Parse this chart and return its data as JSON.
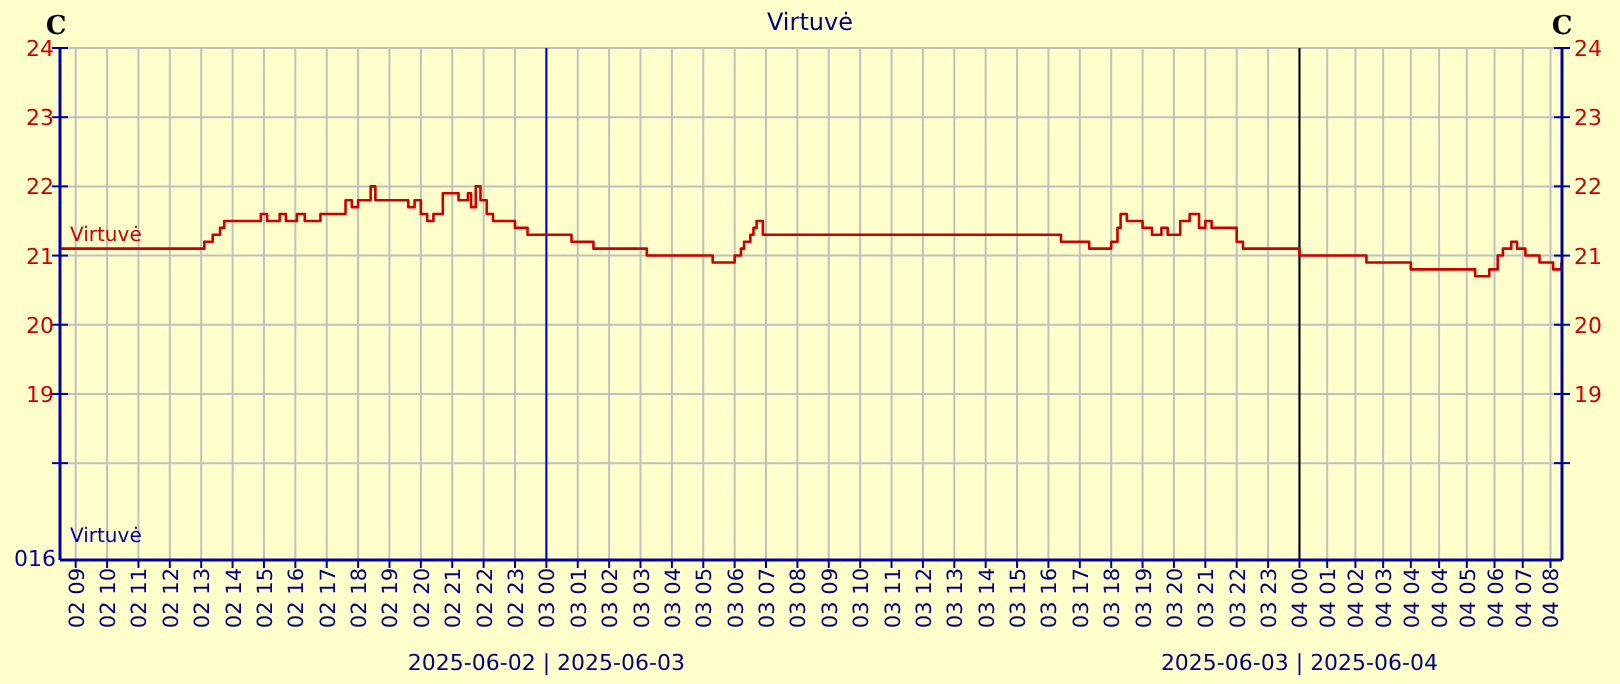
{
  "chart_data": {
    "type": "step",
    "title": "Virtuvė",
    "ylabel": "C",
    "y2label": "C",
    "x": [
      "2025-06-02T08:30",
      "2025-06-02T13:06",
      "2025-06-02T13:22",
      "2025-06-02T13:36",
      "2025-06-02T13:44",
      "2025-06-02T14:54",
      "2025-06-02T15:06",
      "2025-06-02T15:30",
      "2025-06-02T15:42",
      "2025-06-02T16:03",
      "2025-06-02T16:18",
      "2025-06-02T16:48",
      "2025-06-02T17:36",
      "2025-06-02T17:48",
      "2025-06-02T18:00",
      "2025-06-02T18:24",
      "2025-06-02T18:33",
      "2025-06-02T19:36",
      "2025-06-02T19:48",
      "2025-06-02T20:00",
      "2025-06-02T20:12",
      "2025-06-02T20:24",
      "2025-06-02T20:42",
      "2025-06-02T21:12",
      "2025-06-02T21:30",
      "2025-06-02T21:36",
      "2025-06-02T21:45",
      "2025-06-02T21:54",
      "2025-06-02T22:06",
      "2025-06-02T22:18",
      "2025-06-02T23:00",
      "2025-06-02T23:24",
      "2025-06-03T00:48",
      "2025-06-03T01:30",
      "2025-06-03T03:12",
      "2025-06-03T05:18",
      "2025-06-03T06:00",
      "2025-06-03T06:12",
      "2025-06-03T06:18",
      "2025-06-03T06:30",
      "2025-06-03T06:36",
      "2025-06-03T06:42",
      "2025-06-03T06:54",
      "2025-06-03T16:24",
      "2025-06-03T17:18",
      "2025-06-03T18:00",
      "2025-06-03T18:12",
      "2025-06-03T18:18",
      "2025-06-03T18:30",
      "2025-06-03T19:00",
      "2025-06-03T19:18",
      "2025-06-03T19:36",
      "2025-06-03T19:48",
      "2025-06-03T20:12",
      "2025-06-03T20:30",
      "2025-06-03T20:48",
      "2025-06-03T21:00",
      "2025-06-03T21:12",
      "2025-06-03T22:00",
      "2025-06-03T22:12",
      "2025-06-04T00:00",
      "2025-06-04T02:08",
      "2025-06-04T03:33",
      "2025-06-04T05:36",
      "2025-06-04T06:03",
      "2025-06-04T06:19",
      "2025-06-04T06:29",
      "2025-06-04T06:45",
      "2025-06-04T06:56",
      "2025-06-04T07:12",
      "2025-06-04T07:39",
      "2025-06-04T08:05",
      "2025-06-04T08:21"
    ],
    "series": [
      {
        "name": "Virtuvė",
        "color": "#cc0000",
        "values": [
          21.1,
          21.2,
          21.3,
          21.4,
          21.5,
          21.6,
          21.5,
          21.6,
          21.5,
          21.6,
          21.5,
          21.6,
          21.8,
          21.7,
          21.8,
          22.0,
          21.8,
          21.7,
          21.8,
          21.6,
          21.5,
          21.6,
          21.9,
          21.8,
          21.9,
          21.7,
          22.0,
          21.8,
          21.6,
          21.5,
          21.4,
          21.3,
          21.2,
          21.1,
          21.0,
          20.9,
          21.0,
          21.1,
          21.2,
          21.3,
          21.4,
          21.5,
          21.3,
          21.2,
          21.1,
          21.2,
          21.4,
          21.6,
          21.5,
          21.4,
          21.3,
          21.4,
          21.3,
          21.5,
          21.6,
          21.4,
          21.5,
          21.4,
          21.2,
          21.1,
          21.0,
          20.9,
          20.8,
          20.7,
          20.8,
          21.0,
          21.1,
          21.2,
          21.1,
          21.0,
          20.9,
          20.8,
          20.9
        ]
      }
    ],
    "xlim": [
      "2025-06-02T08:30",
      "2025-06-04T08:22"
    ],
    "xticks": [
      {
        "value": "2025-06-02T09:00",
        "label": "02 09"
      },
      {
        "value": "2025-06-02T10:00",
        "label": "02 10"
      },
      {
        "value": "2025-06-02T11:00",
        "label": "02 11"
      },
      {
        "value": "2025-06-02T12:00",
        "label": "02 12"
      },
      {
        "value": "2025-06-02T13:00",
        "label": "02 13"
      },
      {
        "value": "2025-06-02T14:00",
        "label": "02 14"
      },
      {
        "value": "2025-06-02T15:00",
        "label": "02 15"
      },
      {
        "value": "2025-06-02T16:00",
        "label": "02 16"
      },
      {
        "value": "2025-06-02T17:00",
        "label": "02 17"
      },
      {
        "value": "2025-06-02T18:00",
        "label": "02 18"
      },
      {
        "value": "2025-06-02T19:00",
        "label": "02 19"
      },
      {
        "value": "2025-06-02T20:00",
        "label": "02 20"
      },
      {
        "value": "2025-06-02T21:00",
        "label": "02 21"
      },
      {
        "value": "2025-06-02T22:00",
        "label": "02 22"
      },
      {
        "value": "2025-06-02T23:00",
        "label": "02 23"
      },
      {
        "value": "2025-06-03T00:00",
        "label": "03 00"
      },
      {
        "value": "2025-06-03T01:00",
        "label": "03 01"
      },
      {
        "value": "2025-06-03T02:00",
        "label": "03 02"
      },
      {
        "value": "2025-06-03T03:00",
        "label": "03 03"
      },
      {
        "value": "2025-06-03T04:00",
        "label": "03 04"
      },
      {
        "value": "2025-06-03T05:00",
        "label": "03 05"
      },
      {
        "value": "2025-06-03T06:00",
        "label": "03 06"
      },
      {
        "value": "2025-06-03T07:00",
        "label": "03 07"
      },
      {
        "value": "2025-06-03T08:00",
        "label": "03 08"
      },
      {
        "value": "2025-06-03T09:00",
        "label": "03 09"
      },
      {
        "value": "2025-06-03T10:00",
        "label": "03 10"
      },
      {
        "value": "2025-06-03T11:00",
        "label": "03 11"
      },
      {
        "value": "2025-06-03T12:00",
        "label": "03 12"
      },
      {
        "value": "2025-06-03T13:00",
        "label": "03 13"
      },
      {
        "value": "2025-06-03T14:00",
        "label": "03 14"
      },
      {
        "value": "2025-06-03T15:00",
        "label": "03 15"
      },
      {
        "value": "2025-06-03T16:00",
        "label": "03 16"
      },
      {
        "value": "2025-06-03T17:00",
        "label": "03 17"
      },
      {
        "value": "2025-06-03T18:00",
        "label": "03 18"
      },
      {
        "value": "2025-06-03T19:00",
        "label": "03 19"
      },
      {
        "value": "2025-06-03T20:00",
        "label": "03 20"
      },
      {
        "value": "2025-06-03T21:00",
        "label": "03 21"
      },
      {
        "value": "2025-06-03T22:00",
        "label": "03 22"
      },
      {
        "value": "2025-06-03T23:00",
        "label": "03 23"
      },
      {
        "value": "2025-06-04T00:00",
        "label": "04 00"
      },
      {
        "value": "2025-06-04T00:53",
        "label": "04 01"
      },
      {
        "value": "2025-06-04T01:47",
        "label": "04 02"
      },
      {
        "value": "2025-06-04T02:40",
        "label": "04 03"
      },
      {
        "value": "2025-06-04T03:33",
        "label": "04 04"
      },
      {
        "value": "2025-06-04T04:27",
        "label": "04 04"
      },
      {
        "value": "2025-06-04T05:20",
        "label": "04 05"
      },
      {
        "value": "2025-06-04T06:13",
        "label": "04 06"
      },
      {
        "value": "2025-06-04T07:07",
        "label": "04 07"
      },
      {
        "value": "2025-06-04T08:00",
        "label": "04 08"
      }
    ],
    "ylim": [
      16.6,
      24
    ],
    "yticks": [
      {
        "value": 18,
        "label": null
      },
      19,
      20,
      21,
      22,
      23,
      24
    ],
    "y2lim": [
      16.6,
      24
    ],
    "y2ticks": [
      {
        "value": 18,
        "label": null
      },
      19,
      20,
      21,
      22,
      23,
      24
    ],
    "grid": true,
    "line_style": "solid",
    "ref_lines": [
      {
        "axis": "x",
        "value": "2025-06-03T00:00",
        "color": "#0000cc"
      },
      {
        "axis": "x",
        "value": "2025-06-04T00:00",
        "color": "#000000"
      }
    ],
    "annotations": [
      "016",
      "Virtuvė",
      "2025-06-02 | 2025-06-03",
      "2025-06-03 | 2025-06-04"
    ]
  }
}
